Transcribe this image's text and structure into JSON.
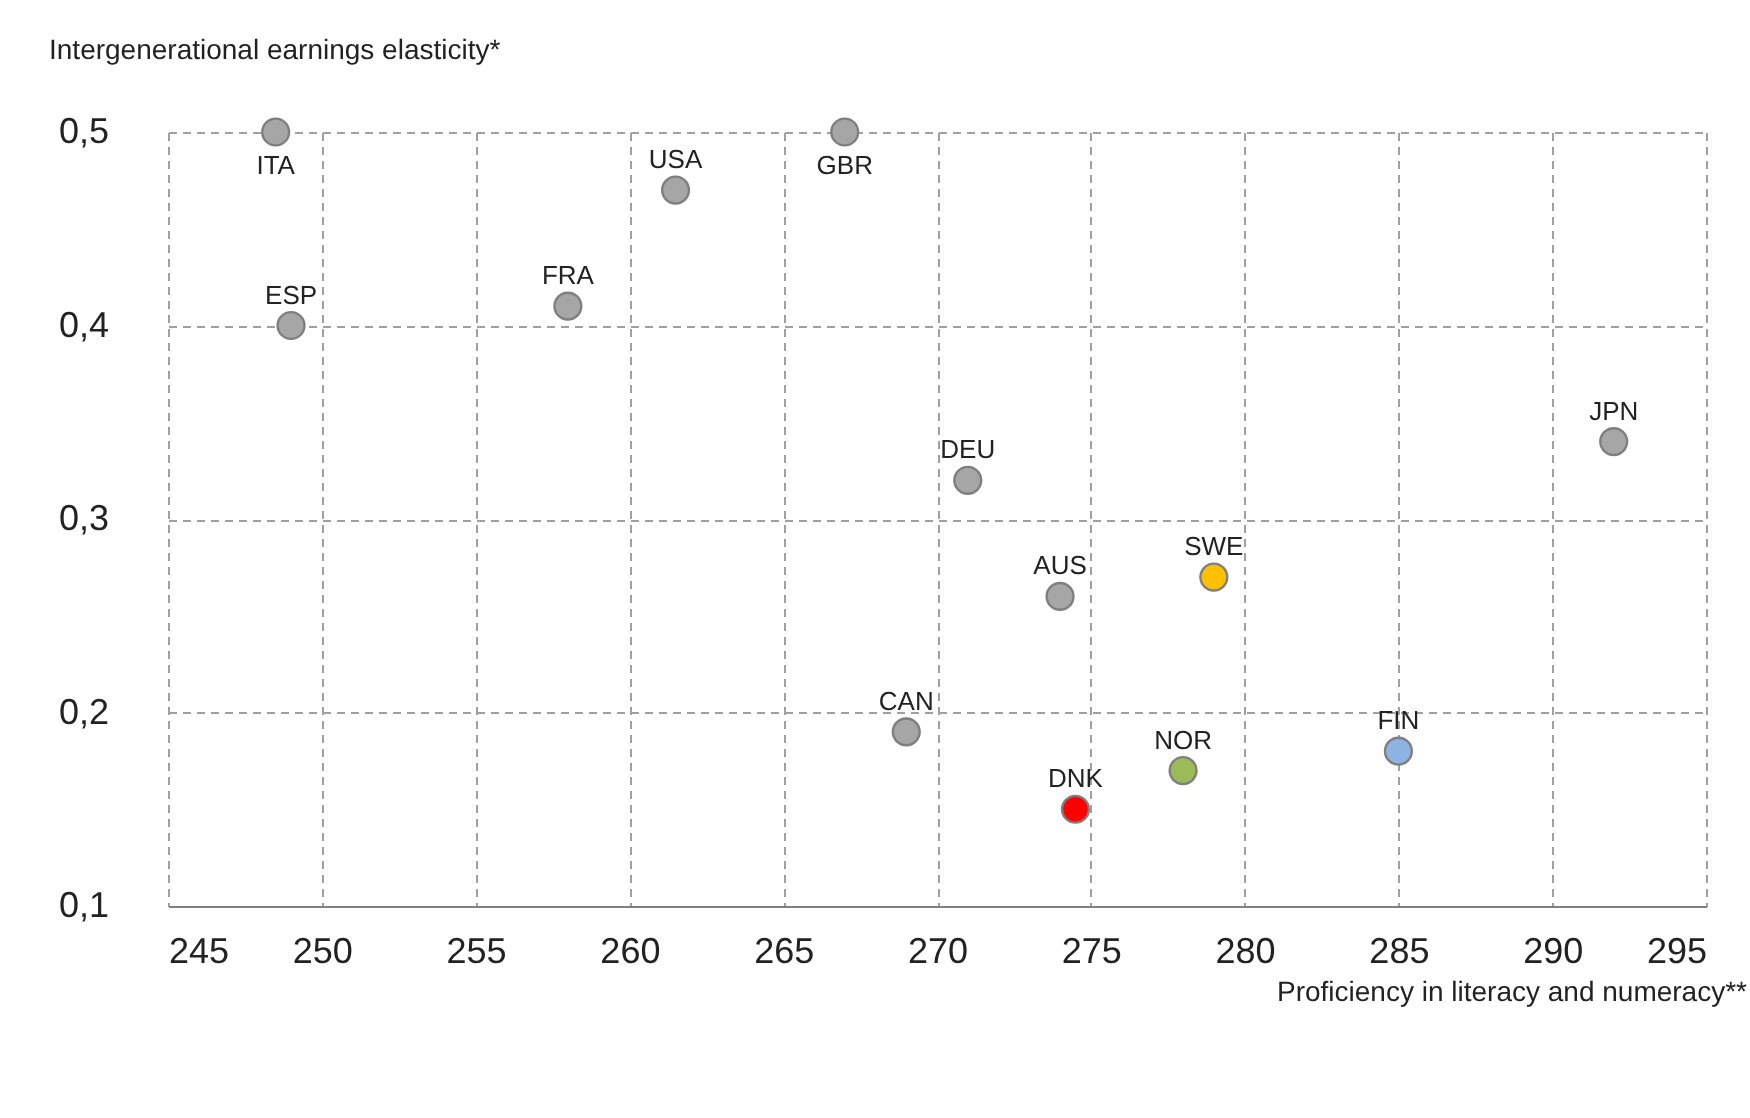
{
  "chart_data": {
    "type": "scatter",
    "ylabel": "Intergenerational earnings elasticity*",
    "xlabel": "Proficiency in literacy and numeracy**",
    "xlim": [
      245,
      295
    ],
    "xticks": [
      245,
      250,
      255,
      260,
      265,
      270,
      275,
      280,
      285,
      290,
      295
    ],
    "ylim": [
      0.1,
      0.5
    ],
    "yticks": [
      {
        "value": 0.1,
        "label": "0,1"
      },
      {
        "value": 0.2,
        "label": "0,2"
      },
      {
        "value": 0.3,
        "label": "0,3"
      },
      {
        "value": 0.4,
        "label": "0,4"
      },
      {
        "value": 0.5,
        "label": "0,5"
      }
    ],
    "grid": true,
    "legend": false,
    "marker": "circle",
    "series": [
      {
        "name": "ITA",
        "color": "#a6a6a6",
        "x": [
          248.5
        ],
        "values": [
          0.5
        ]
      },
      {
        "name": "ESP",
        "color": "#a6a6a6",
        "x": [
          249
        ],
        "values": [
          0.4
        ]
      },
      {
        "name": "FRA",
        "color": "#a6a6a6",
        "x": [
          258
        ],
        "values": [
          0.41
        ]
      },
      {
        "name": "USA",
        "color": "#a6a6a6",
        "x": [
          261.5
        ],
        "values": [
          0.47
        ]
      },
      {
        "name": "GBR",
        "color": "#a6a6a6",
        "x": [
          267
        ],
        "values": [
          0.5
        ]
      },
      {
        "name": "CAN",
        "color": "#a6a6a6",
        "x": [
          269
        ],
        "values": [
          0.19
        ]
      },
      {
        "name": "DEU",
        "color": "#a6a6a6",
        "x": [
          271
        ],
        "values": [
          0.32
        ]
      },
      {
        "name": "AUS",
        "color": "#a6a6a6",
        "x": [
          274
        ],
        "values": [
          0.26
        ]
      },
      {
        "name": "DNK",
        "color": "#ff0000",
        "x": [
          274.5
        ],
        "values": [
          0.15
        ]
      },
      {
        "name": "NOR",
        "color": "#9bbb59",
        "x": [
          278
        ],
        "values": [
          0.17
        ]
      },
      {
        "name": "SWE",
        "color": "#ffc000",
        "x": [
          279
        ],
        "values": [
          0.27
        ]
      },
      {
        "name": "FIN",
        "color": "#8eb4e3",
        "x": [
          285
        ],
        "values": [
          0.18
        ]
      },
      {
        "name": "JPN",
        "color": "#a6a6a6",
        "x": [
          292
        ],
        "values": [
          0.34
        ]
      }
    ]
  }
}
